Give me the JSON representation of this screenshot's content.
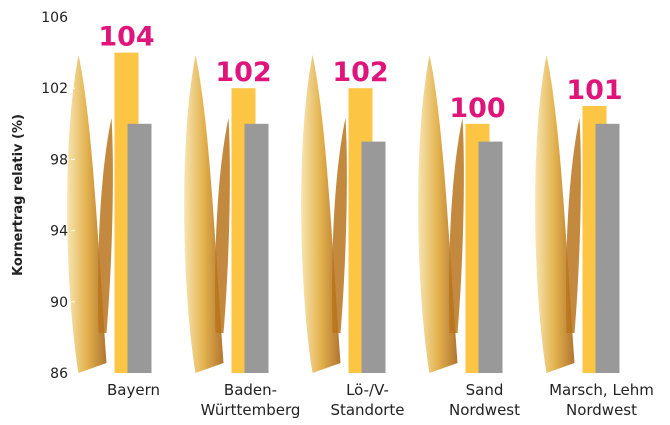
{
  "chart_data": {
    "type": "bar",
    "y_label": "Kornertrag relativ (%)",
    "categories": [
      "Bayern",
      "Baden-\nWürttemberg",
      "Lö-/V-\nStandorte",
      "Sand\nNordwest",
      "Marsch, Lehm\nNordwest"
    ],
    "series": [
      {
        "color": "#fdc544",
        "values": [
          104,
          102,
          102,
          100,
          101
        ],
        "label_color": "#e0157b"
      },
      {
        "color": "#999999",
        "values": [
          100,
          100,
          99,
          99,
          100
        ]
      }
    ],
    "ylim": [
      86,
      106
    ],
    "yticks": [
      86,
      90,
      94,
      98,
      102,
      106
    ],
    "grid": false
  }
}
